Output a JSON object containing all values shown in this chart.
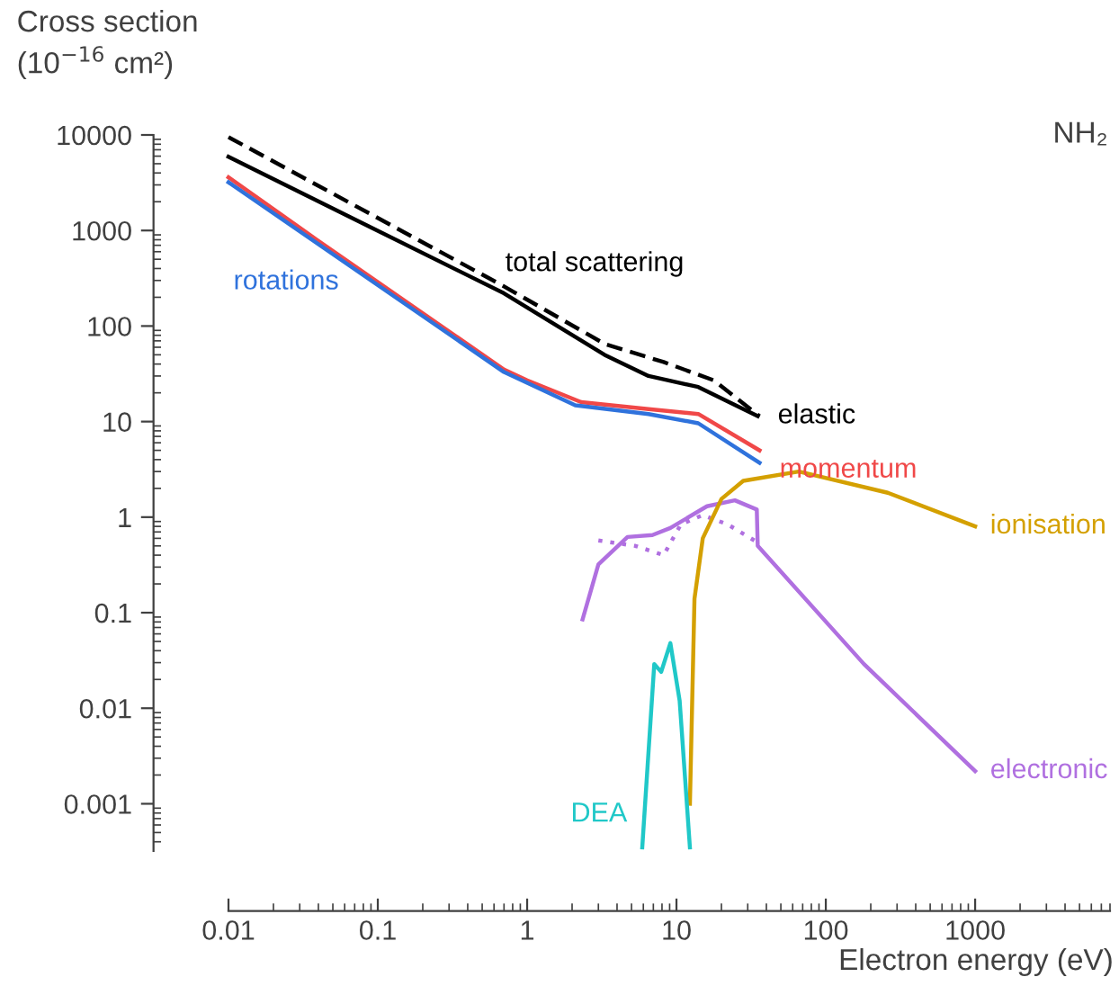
{
  "chart_data": {
    "type": "line",
    "title": "NH₂",
    "xlabel": "Electron energy (eV)",
    "ylabel": "Cross section\n(10$^{−16}$ cm²)",
    "log": "xy",
    "xlim": [
      0.01,
      8000
    ],
    "ylim": [
      0.00032,
      10000
    ],
    "xticks": [
      0.01,
      0.1,
      1,
      10,
      100,
      1000
    ],
    "yticks": [
      0.001,
      0.01,
      0.1,
      1,
      10,
      100,
      1000,
      10000
    ],
    "grid": false,
    "legend": false,
    "marker": "none",
    "series": [
      {
        "name": "total scattering",
        "color": "#000000",
        "line_style": "dashed",
        "x": [
          0.01,
          0.7,
          3.3,
          8.2,
          17.8,
          36
        ],
        "values": [
          9500,
          260,
          65,
          42,
          27,
          11.4
        ]
      },
      {
        "name": "elastic",
        "color": "#000000",
        "line_style": "solid",
        "x": [
          0.01,
          0.7,
          3.3,
          6.5,
          14,
          35
        ],
        "values": [
          5900,
          220,
          50,
          30,
          23,
          11.4
        ]
      },
      {
        "name": "momentum",
        "color": "#f04848",
        "line_style": "solid",
        "x": [
          0.01,
          0.039,
          0.7,
          1,
          2.3,
          6.5,
          14,
          36
        ],
        "values": [
          3600,
          800,
          35,
          27,
          16,
          13.5,
          12,
          5.0
        ]
      },
      {
        "name": "rotations",
        "color": "#2f72dc",
        "line_style": "solid",
        "x": [
          0.01,
          0.7,
          2.1,
          6.5,
          14,
          36
        ],
        "values": [
          3200,
          33,
          14.8,
          12,
          9.6,
          3.7
        ]
      },
      {
        "name": "electronic",
        "color": "#b070e0",
        "line_style": "solid",
        "x": [
          2.35,
          3.0,
          4.7,
          6.9,
          9.1,
          16,
          24.6,
          34.5,
          35,
          180,
          1000
        ],
        "values": [
          0.085,
          0.32,
          0.62,
          0.65,
          0.77,
          1.3,
          1.5,
          1.2,
          0.5,
          0.029,
          0.0022
        ]
      },
      {
        "color": "#b070e0",
        "line_style": "dotted",
        "x": [
          3.0,
          5.3,
          8.2,
          10.7,
          15,
          22,
          34.5
        ],
        "values": [
          0.57,
          0.5,
          0.4,
          0.84,
          1.05,
          0.84,
          0.55
        ]
      },
      {
        "name": "ionisation",
        "color": "#d4a000",
        "line_style": "solid",
        "x": [
          12.3,
          13.2,
          15,
          20,
          28,
          66,
          260,
          1000
        ],
        "values": [
          0.001,
          0.14,
          0.6,
          1.55,
          2.4,
          3.0,
          1.8,
          0.8
        ]
      },
      {
        "name": "DEA",
        "color": "#20c8c8",
        "line_style": "solid",
        "x": [
          5.9,
          7.1,
          7.9,
          9.1,
          10.5,
          12.3
        ],
        "values": [
          0.00035,
          0.029,
          0.024,
          0.048,
          0.012,
          0.00035
        ]
      }
    ]
  }
}
